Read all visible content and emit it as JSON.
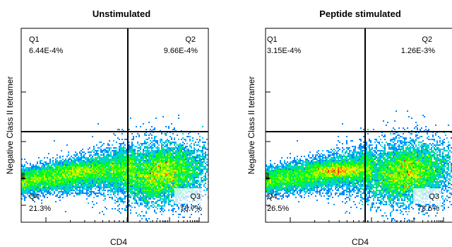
{
  "chart_data": [
    {
      "type": "scatter",
      "subtype": "flow-cytometry-density-plot",
      "title": "Unstimulated",
      "xlabel": "CD4",
      "ylabel": "Negative Class II tetramer",
      "xscale": "log",
      "yscale": "log",
      "grid": false,
      "quadrants": [
        {
          "name": "Q1",
          "value": "6.44E-4%"
        },
        {
          "name": "Q2",
          "value": "9.66E-4%"
        },
        {
          "name": "Q3",
          "value": "78.7%"
        },
        {
          "name": "Q4",
          "value": "21.3%"
        }
      ],
      "density_colors": [
        "#0000ff",
        "#00c8ff",
        "#00ff00",
        "#ffff00",
        "#ff0000"
      ]
    },
    {
      "type": "scatter",
      "subtype": "flow-cytometry-density-plot",
      "title": "Peptide stimulated",
      "xlabel": "CD4",
      "ylabel": "Negative Class II tetramer",
      "xscale": "log",
      "yscale": "log",
      "grid": false,
      "quadrants": [
        {
          "name": "Q1",
          "value": "3.15E-4%"
        },
        {
          "name": "Q2",
          "value": "1.26E-3%"
        },
        {
          "name": "Q3",
          "value": "73.5%"
        },
        {
          "name": "Q4",
          "value": "26.5%"
        }
      ],
      "density_colors": [
        "#0000ff",
        "#00c8ff",
        "#00ff00",
        "#ffff00",
        "#ff0000"
      ]
    }
  ]
}
